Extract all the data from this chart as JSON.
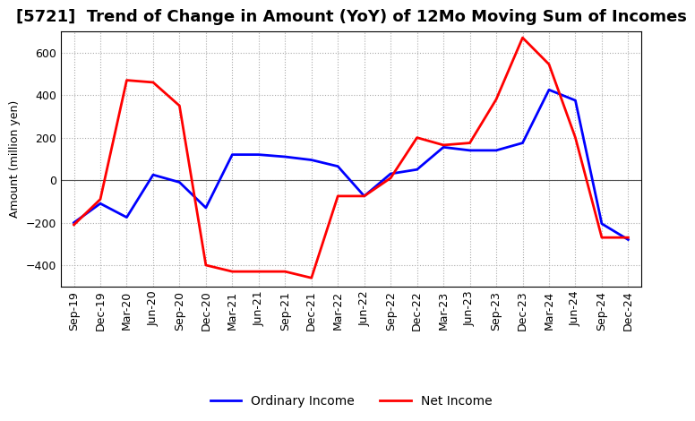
{
  "title": "[5721]  Trend of Change in Amount (YoY) of 12Mo Moving Sum of Incomes",
  "ylabel": "Amount (million yen)",
  "x_labels": [
    "Sep-19",
    "Dec-19",
    "Mar-20",
    "Jun-20",
    "Sep-20",
    "Dec-20",
    "Mar-21",
    "Jun-21",
    "Sep-21",
    "Dec-21",
    "Mar-22",
    "Jun-22",
    "Sep-22",
    "Dec-22",
    "Mar-23",
    "Jun-23",
    "Sep-23",
    "Dec-23",
    "Mar-24",
    "Jun-24",
    "Sep-24",
    "Dec-24"
  ],
  "ordinary_income": [
    -200,
    -110,
    -175,
    25,
    -10,
    -130,
    120,
    120,
    110,
    95,
    65,
    -75,
    30,
    50,
    155,
    140,
    140,
    175,
    425,
    375,
    -205,
    -280
  ],
  "net_income": [
    -210,
    -90,
    470,
    460,
    350,
    -400,
    -430,
    -430,
    -430,
    -460,
    -75,
    -75,
    10,
    200,
    165,
    175,
    380,
    670,
    545,
    200,
    -270,
    -270
  ],
  "ordinary_income_color": "#0000FF",
  "net_income_color": "#FF0000",
  "line_width": 2.0,
  "ylim": [
    -500,
    700
  ],
  "yticks": [
    -400,
    -200,
    0,
    200,
    400,
    600
  ],
  "background_color": "#FFFFFF",
  "plot_bg_color": "#FFFFFF",
  "grid_color": "#AAAAAA",
  "title_fontsize": 13,
  "legend_fontsize": 10,
  "axis_label_fontsize": 9,
  "tick_fontsize": 9
}
